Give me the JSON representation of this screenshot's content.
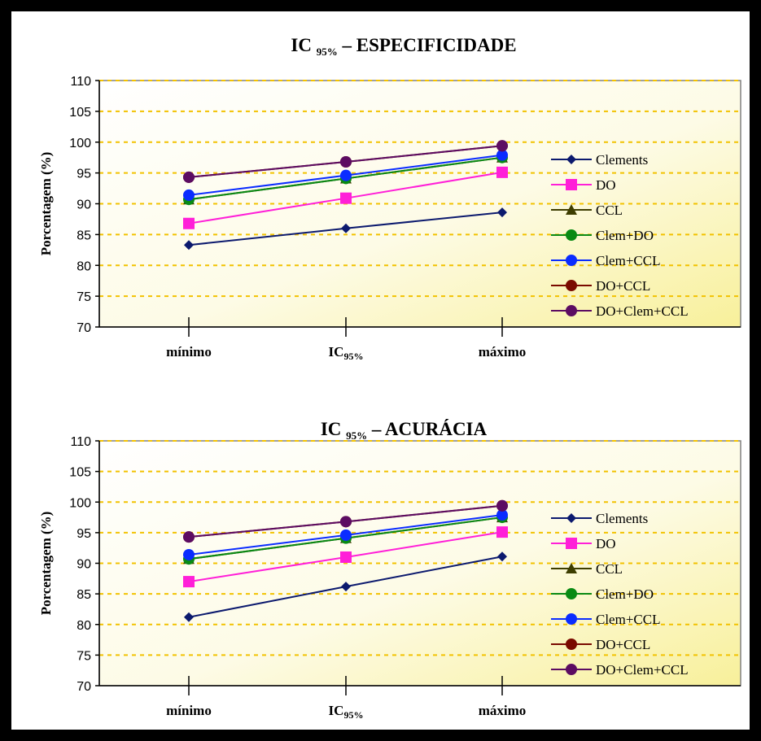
{
  "chart_data": [
    {
      "type": "line",
      "title": "IC",
      "title_sub": "95%",
      "title_rest": " – ESPECIFICIDADE",
      "ylabel": "Porcentagem  (%)",
      "categories": [
        "mínimo",
        "IC",
        "máximo"
      ],
      "category_subs": [
        "",
        "95%",
        ""
      ],
      "ylim": [
        70,
        110
      ],
      "yticks": [
        "70",
        "75",
        "80",
        "85",
        "90",
        "95",
        "100",
        "105",
        "110"
      ],
      "grid": "dashed-horizontal",
      "legend_position": "right",
      "series": [
        {
          "name": "Clements",
          "color": "#0c1a6e",
          "marker": "diamond",
          "values": [
            83.3,
            86.0,
            88.6
          ]
        },
        {
          "name": "DO",
          "color": "#ff1fd8",
          "marker": "square",
          "values": [
            86.8,
            90.9,
            95.1
          ]
        },
        {
          "name": "CCL",
          "color": "#3d3d00",
          "marker": "triangle",
          "values": [
            90.7,
            94.1,
            97.5
          ]
        },
        {
          "name": "Clem+DO",
          "color": "#0a8a14",
          "marker": "circle",
          "values": [
            90.7,
            94.1,
            97.5
          ]
        },
        {
          "name": "Clem+CCL",
          "color": "#0a2cff",
          "marker": "circle",
          "values": [
            91.4,
            94.6,
            97.9
          ]
        },
        {
          "name": "DO+CCL",
          "color": "#7a0a00",
          "marker": "circle",
          "values": [
            94.3,
            96.8,
            99.4
          ]
        },
        {
          "name": "DO+Clem+CCL",
          "color": "#5c0c62",
          "marker": "circle",
          "values": [
            94.3,
            96.8,
            99.4
          ]
        }
      ]
    },
    {
      "type": "line",
      "title": "IC",
      "title_sub": "95%",
      "title_rest": " – ACURÁCIA",
      "ylabel": "Porcentagem  (%)",
      "categories": [
        "mínimo",
        "IC",
        "máximo"
      ],
      "category_subs": [
        "",
        "95%",
        ""
      ],
      "ylim": [
        70,
        110
      ],
      "yticks": [
        "70",
        "75",
        "80",
        "85",
        "90",
        "95",
        "100",
        "105",
        "110"
      ],
      "grid": "dashed-horizontal",
      "legend_position": "right",
      "series": [
        {
          "name": "Clements",
          "color": "#0c1a6e",
          "marker": "diamond",
          "values": [
            81.2,
            86.2,
            91.1
          ]
        },
        {
          "name": "DO",
          "color": "#ff1fd8",
          "marker": "square",
          "values": [
            87.0,
            91.0,
            95.1
          ]
        },
        {
          "name": "CCL",
          "color": "#3d3d00",
          "marker": "triangle",
          "values": [
            90.7,
            94.1,
            97.5
          ]
        },
        {
          "name": "Clem+DO",
          "color": "#0a8a14",
          "marker": "circle",
          "values": [
            90.7,
            94.1,
            97.5
          ]
        },
        {
          "name": "Clem+CCL",
          "color": "#0a2cff",
          "marker": "circle",
          "values": [
            91.4,
            94.6,
            97.9
          ]
        },
        {
          "name": "DO+CCL",
          "color": "#7a0a00",
          "marker": "circle",
          "values": [
            94.3,
            96.8,
            99.4
          ]
        },
        {
          "name": "DO+Clem+CCL",
          "color": "#5c0c62",
          "marker": "circle",
          "values": [
            94.3,
            96.8,
            99.4
          ]
        }
      ]
    }
  ]
}
